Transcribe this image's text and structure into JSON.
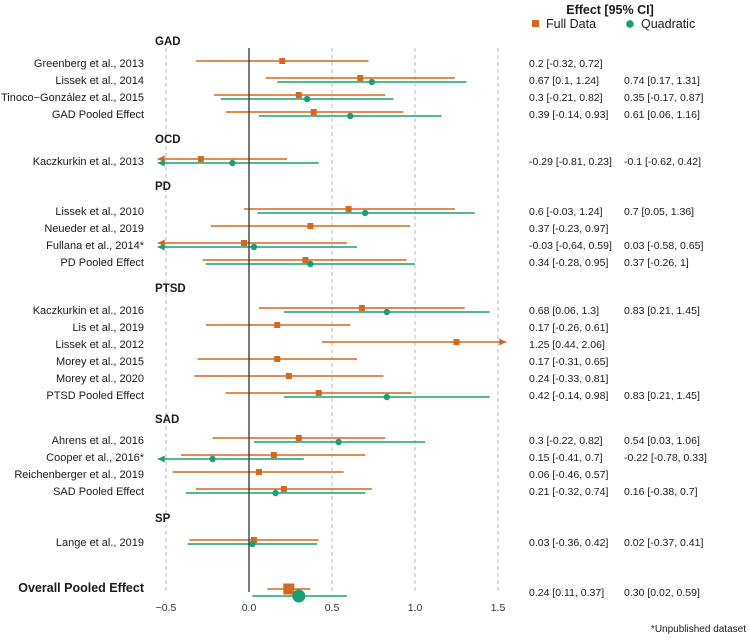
{
  "chart_data": {
    "type": "forest",
    "title": "Effect [95% CI]",
    "footnote": "*Unpublished dataset",
    "overall_label": "Overall Pooled Effect",
    "x_ticks": [
      -0.5,
      0.0,
      0.5,
      1.0,
      1.5
    ],
    "x_tick_labels": [
      "−0.5",
      "0.0",
      "0.5",
      "1.0",
      "1.5"
    ],
    "xlim": [
      -0.55,
      1.55
    ],
    "reference_line": 0,
    "series": [
      {
        "name": "Full Data",
        "color": "#d2691e",
        "marker": "square"
      },
      {
        "name": "Quadratic",
        "color": "#1b9e77",
        "marker": "circle"
      }
    ],
    "groups": [
      {
        "name": "GAD",
        "rows": [
          {
            "label": "Greenberg et al., 2013",
            "full": [
              0.2,
              -0.32,
              0.72
            ],
            "quad": null,
            "full_text": "0.2  [-0.32, 0.72]",
            "quad_text": ""
          },
          {
            "label": "Lissek et al., 2014",
            "full": [
              0.67,
              0.1,
              1.24
            ],
            "quad": [
              0.74,
              0.17,
              1.31
            ],
            "full_text": "0.67 [0.1, 1.24]",
            "quad_text": "0.74 [0.17, 1.31]"
          },
          {
            "label": "Tinoco−González et al., 2015",
            "full": [
              0.3,
              -0.21,
              0.82
            ],
            "quad": [
              0.35,
              -0.17,
              0.87
            ],
            "full_text": "0.3  [-0.21, 0.82]",
            "quad_text": "0.35 [-0.17, 0.87]"
          },
          {
            "label": "GAD Pooled Effect",
            "full": [
              0.39,
              -0.14,
              0.93
            ],
            "quad": [
              0.61,
              0.06,
              1.16
            ],
            "full_text": "0.39 [-0.14, 0.93]",
            "quad_text": "0.61 [0.06, 1.16]"
          }
        ]
      },
      {
        "name": "OCD",
        "rows": [
          {
            "label": "Kaczkurkin et al., 2013",
            "full": [
              -0.29,
              -0.81,
              0.23
            ],
            "quad": [
              -0.1,
              -0.62,
              0.42
            ],
            "full_text": "-0.29 [-0.81, 0.23]",
            "quad_text": "-0.1  [-0.62, 0.42]"
          }
        ]
      },
      {
        "name": "PD",
        "rows": [
          {
            "label": "Lissek et al., 2010",
            "full": [
              0.6,
              -0.03,
              1.24
            ],
            "quad": [
              0.7,
              0.05,
              1.36
            ],
            "full_text": "0.6   [-0.03, 1.24]",
            "quad_text": "0.7   [0.05, 1.36]"
          },
          {
            "label": "Neueder et al., 2019",
            "full": [
              0.37,
              -0.23,
              0.97
            ],
            "quad": null,
            "full_text": "0.37 [-0.23, 0.97]",
            "quad_text": ""
          },
          {
            "label": "Fullana et al., 2014*",
            "full": [
              -0.03,
              -0.64,
              0.59
            ],
            "quad": [
              0.03,
              -0.58,
              0.65
            ],
            "full_text": "-0.03 [-0.64, 0.59]",
            "quad_text": "0.03 [-0.58, 0.65]"
          },
          {
            "label": "PD Pooled Effect",
            "full": [
              0.34,
              -0.28,
              0.95
            ],
            "quad": [
              0.37,
              -0.26,
              1.0
            ],
            "full_text": "0.34 [-0.28, 0.95]",
            "quad_text": "0.37 [-0.26, 1]"
          }
        ]
      },
      {
        "name": "PTSD",
        "rows": [
          {
            "label": "Kaczkurkin et al., 2016",
            "full": [
              0.68,
              0.06,
              1.3
            ],
            "quad": [
              0.83,
              0.21,
              1.45
            ],
            "full_text": "0.68 [0.06, 1.3]",
            "quad_text": "0.83 [0.21, 1.45]"
          },
          {
            "label": "Lis et al., 2019",
            "full": [
              0.17,
              -0.26,
              0.61
            ],
            "quad": null,
            "full_text": "0.17 [-0.26, 0.61]",
            "quad_text": ""
          },
          {
            "label": "Lissek et al., 2012",
            "full": [
              1.25,
              0.44,
              2.06
            ],
            "quad": null,
            "full_text": "1.25 [0.44, 2.06]",
            "quad_text": ""
          },
          {
            "label": "Morey et al., 2015",
            "full": [
              0.17,
              -0.31,
              0.65
            ],
            "quad": null,
            "full_text": "0.17 [-0.31, 0.65]",
            "quad_text": ""
          },
          {
            "label": "Morey et al., 2020",
            "full": [
              0.24,
              -0.33,
              0.81
            ],
            "quad": null,
            "full_text": "0.24 [-0.33, 0.81]",
            "quad_text": ""
          },
          {
            "label": "PTSD Pooled Effect",
            "full": [
              0.42,
              -0.14,
              0.98
            ],
            "quad": [
              0.83,
              0.21,
              1.45
            ],
            "full_text": "0.42 [-0.14, 0.98]",
            "quad_text": "0.83 [0.21, 1.45]"
          }
        ]
      },
      {
        "name": "SAD",
        "rows": [
          {
            "label": "Ahrens et al., 2016",
            "full": [
              0.3,
              -0.22,
              0.82
            ],
            "quad": [
              0.54,
              0.03,
              1.06
            ],
            "full_text": "0.3   [-0.22, 0.82]",
            "quad_text": "0.54 [0.03, 1.06]"
          },
          {
            "label": "Cooper et al., 2016*",
            "full": [
              0.15,
              -0.41,
              0.7
            ],
            "quad": [
              -0.22,
              -0.78,
              0.33
            ],
            "full_text": "0.15 [-0.41, 0.7]",
            "quad_text": "-0.22 [-0.78, 0.33]"
          },
          {
            "label": "Reichenberger et al., 2019",
            "full": [
              0.06,
              -0.46,
              0.57
            ],
            "quad": null,
            "full_text": "0.06 [-0.46, 0.57]",
            "quad_text": ""
          },
          {
            "label": "SAD Pooled Effect",
            "full": [
              0.21,
              -0.32,
              0.74
            ],
            "quad": [
              0.16,
              -0.38,
              0.7
            ],
            "full_text": "0.21 [-0.32, 0.74]",
            "quad_text": "0.16 [-0.38, 0.7]"
          }
        ]
      },
      {
        "name": "SP",
        "rows": [
          {
            "label": "Lange et al., 2019",
            "full": [
              0.03,
              -0.36,
              0.42
            ],
            "quad": [
              0.02,
              -0.37,
              0.41
            ],
            "full_text": "0.03 [-0.36, 0.42]",
            "quad_text": "0.02 [-0.37, 0.41]"
          }
        ]
      }
    ],
    "overall": {
      "full": [
        0.24,
        0.11,
        0.37
      ],
      "quad": [
        0.3,
        0.02,
        0.59
      ],
      "full_text": "0.24 [0.11, 0.37]",
      "quad_text": "0.30 [0.02, 0.59]"
    }
  }
}
